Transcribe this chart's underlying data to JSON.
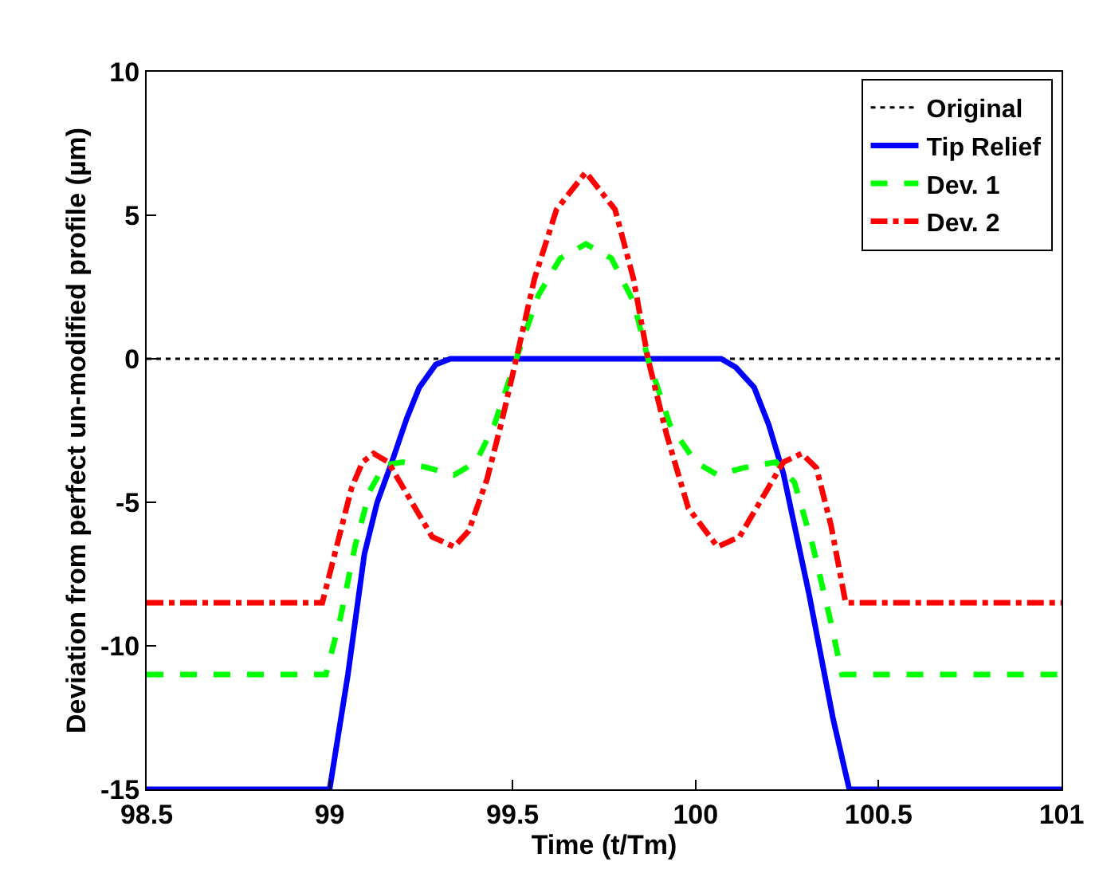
{
  "chart_data": {
    "type": "line",
    "xlabel": "Time (t/Tm)",
    "ylabel": "Deviation from perfect un-modified profile (µm)",
    "xlim": [
      98.5,
      101
    ],
    "xticks": [
      98.5,
      99,
      99.5,
      100,
      100.5,
      101
    ],
    "ylim": [
      -15,
      10
    ],
    "yticks": [
      -15,
      -10,
      -5,
      0,
      5,
      10
    ],
    "legend": "top right",
    "marker": "none",
    "series": [
      {
        "name": "Original",
        "color": "#000000",
        "line_style": "dotted",
        "x": [
          98.5,
          101
        ],
        "values": [
          0,
          0
        ]
      },
      {
        "name": "Tip Relief",
        "color": "#0000ff",
        "line_style": "solid",
        "x": [
          98.5,
          99,
          99.05,
          99.095,
          99.13,
          99.17,
          99.21,
          99.245,
          99.29,
          99.33,
          100.07,
          100.11,
          100.16,
          100.2,
          100.24,
          100.31,
          100.375,
          100.42,
          101
        ],
        "values": [
          -15,
          -15,
          -11,
          -6.8,
          -5,
          -3.6,
          -2.1,
          -1,
          -0.2,
          0,
          0,
          -0.3,
          -1,
          -2.3,
          -4,
          -8.2,
          -12.5,
          -15,
          -15
        ]
      },
      {
        "name": "Dev. 1",
        "color": "#00ff00",
        "line_style": "dashed",
        "x": [
          98.5,
          98.99,
          99.03,
          99.07,
          99.11,
          99.15,
          99.2,
          99.27,
          99.34,
          99.4,
          99.45,
          99.51,
          99.57,
          99.63,
          99.7,
          99.77,
          99.83,
          99.87,
          99.93,
          100.0,
          100.06,
          100.13,
          100.22,
          100.27,
          100.32,
          100.37,
          100.4,
          101
        ],
        "values": [
          -11,
          -11,
          -9,
          -6.5,
          -4.6,
          -3.7,
          -3.6,
          -3.8,
          -4.05,
          -3.6,
          -2.3,
          0,
          2.2,
          3.5,
          4.0,
          3.5,
          2.0,
          0,
          -2.3,
          -3.6,
          -4.05,
          -3.8,
          -3.6,
          -4.3,
          -6.5,
          -9.2,
          -11,
          -11
        ]
      },
      {
        "name": "Dev. 2",
        "color": "#ff0000",
        "line_style": "dashdot",
        "x": [
          98.5,
          98.98,
          99.02,
          99.06,
          99.09,
          99.12,
          99.16,
          99.22,
          99.28,
          99.34,
          99.38,
          99.43,
          99.47,
          99.51,
          99.56,
          99.62,
          99.7,
          99.78,
          99.83,
          99.87,
          99.92,
          99.98,
          100.06,
          100.12,
          100.18,
          100.24,
          100.29,
          100.33,
          100.37,
          100.41,
          101
        ],
        "values": [
          -8.5,
          -8.5,
          -6.5,
          -4.5,
          -3.6,
          -3.3,
          -3.6,
          -4.9,
          -6.2,
          -6.55,
          -6.0,
          -4.2,
          -2.2,
          0,
          2.8,
          5.2,
          6.5,
          5.2,
          2.8,
          0,
          -2.6,
          -5.2,
          -6.55,
          -6.2,
          -4.9,
          -3.6,
          -3.3,
          -3.8,
          -5.8,
          -8.5,
          -8.5
        ]
      }
    ]
  }
}
